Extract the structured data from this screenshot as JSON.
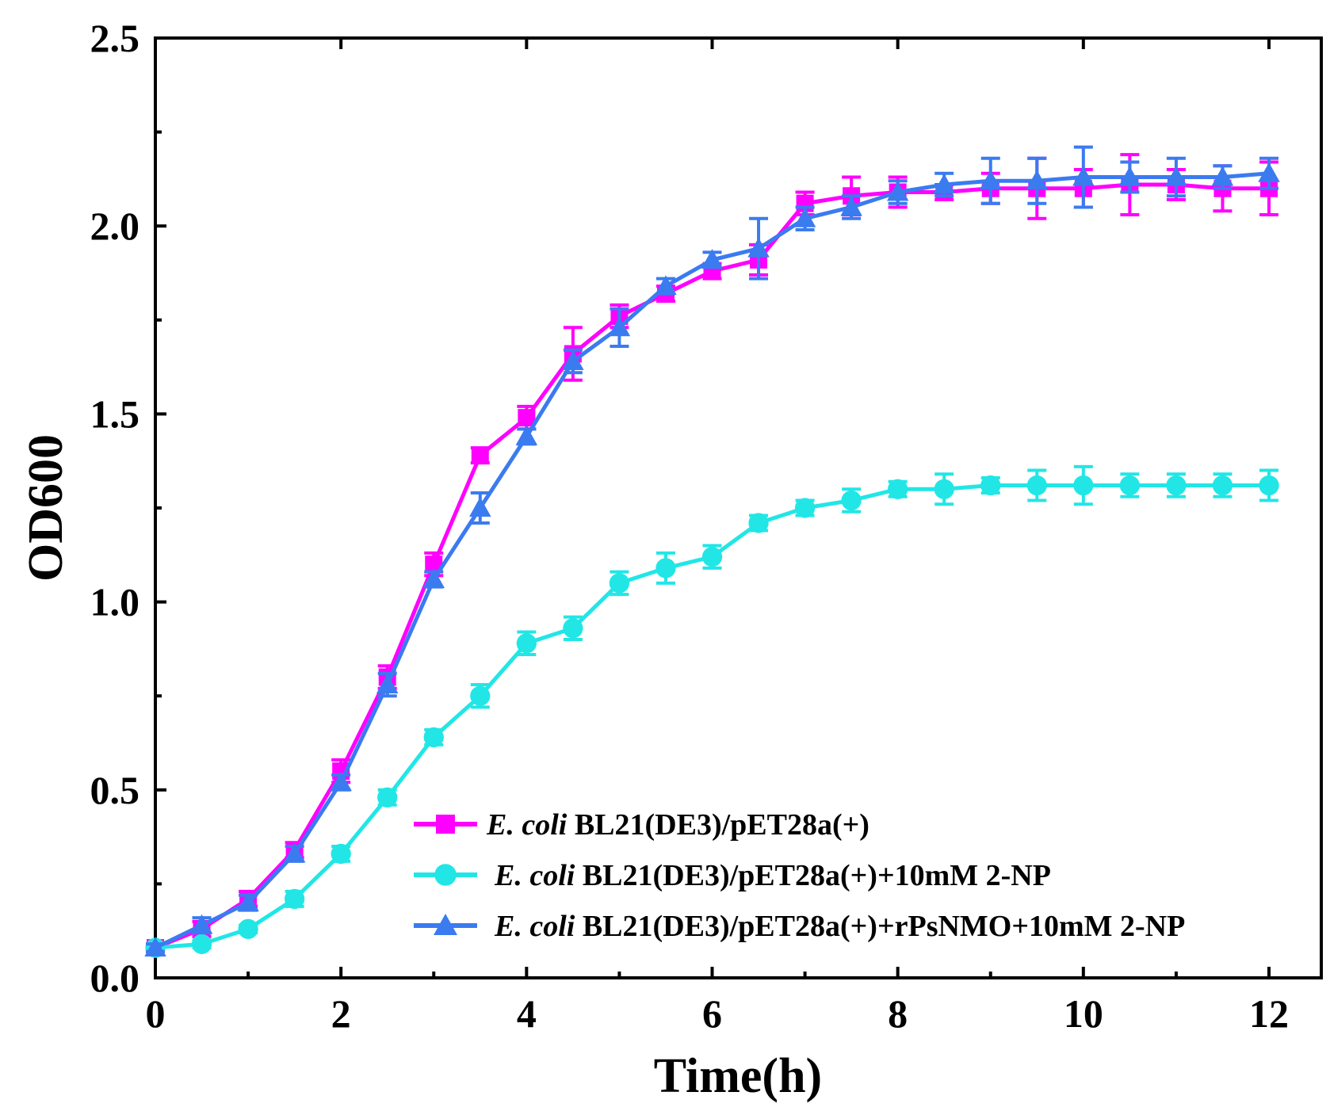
{
  "chart_data": {
    "type": "line",
    "xlabel": "Time(h)",
    "ylabel": "OD600",
    "xlim": [
      0,
      12
    ],
    "ylim": [
      0,
      2.5
    ],
    "x_ticks": [
      "0",
      "2",
      "4",
      "6",
      "8",
      "10",
      "12"
    ],
    "y_ticks": [
      "0.0",
      "0.5",
      "1.0",
      "1.5",
      "2.0",
      "2.5"
    ],
    "grid": false,
    "legend_position": "bottom-right",
    "x": [
      0,
      0.5,
      1,
      1.5,
      2,
      2.5,
      3,
      3.5,
      4,
      4.5,
      5,
      5.5,
      6,
      6.5,
      7,
      7.5,
      8,
      8.5,
      9,
      9.5,
      10,
      10.5,
      11,
      11.5,
      12
    ],
    "series": [
      {
        "legend_italic": "E. coli",
        "legend_rest": " BL21(DE3)/pET28a(+)",
        "marker": "square",
        "color": "#ff00ff",
        "values": [
          0.08,
          0.13,
          0.21,
          0.34,
          0.55,
          0.8,
          1.1,
          1.39,
          1.49,
          1.66,
          1.76,
          1.82,
          1.88,
          1.91,
          2.06,
          2.08,
          2.09,
          2.09,
          2.1,
          2.1,
          2.1,
          2.11,
          2.11,
          2.1,
          2.1
        ],
        "errors": [
          0.01,
          0.02,
          0.02,
          0.02,
          0.03,
          0.03,
          0.03,
          0.02,
          0.03,
          0.07,
          0.03,
          0.02,
          0.02,
          0.04,
          0.03,
          0.05,
          0.04,
          0.02,
          0.04,
          0.08,
          0.05,
          0.08,
          0.04,
          0.06,
          0.07
        ]
      },
      {
        "legend_italic": "E. coli",
        "legend_rest": " BL21(DE3)/pET28a(+)+10mM 2-NP",
        "marker": "circle",
        "color": "#22e6e6",
        "values": [
          0.08,
          0.09,
          0.13,
          0.21,
          0.33,
          0.48,
          0.64,
          0.75,
          0.89,
          0.93,
          1.05,
          1.09,
          1.12,
          1.21,
          1.25,
          1.27,
          1.3,
          1.3,
          1.31,
          1.31,
          1.31,
          1.31,
          1.31,
          1.31,
          1.31
        ],
        "errors": [
          0.01,
          0.01,
          0.01,
          0.02,
          0.02,
          0.02,
          0.02,
          0.03,
          0.03,
          0.03,
          0.03,
          0.04,
          0.03,
          0.02,
          0.02,
          0.03,
          0.02,
          0.04,
          0.02,
          0.04,
          0.05,
          0.03,
          0.03,
          0.03,
          0.04
        ]
      },
      {
        "legend_italic": "E. coli",
        "legend_rest": " BL21(DE3)/pET28a(+)+rPsNMO+10mM 2-NP",
        "marker": "triangle",
        "color": "#3b7bf0",
        "values": [
          0.08,
          0.14,
          0.2,
          0.33,
          0.52,
          0.78,
          1.06,
          1.25,
          1.44,
          1.64,
          1.73,
          1.84,
          1.91,
          1.94,
          2.02,
          2.05,
          2.09,
          2.11,
          2.12,
          2.12,
          2.13,
          2.13,
          2.13,
          2.13,
          2.14
        ],
        "errors": [
          0.01,
          0.02,
          0.02,
          0.02,
          0.02,
          0.03,
          0.02,
          0.04,
          0.02,
          0.03,
          0.05,
          0.02,
          0.02,
          0.08,
          0.03,
          0.03,
          0.03,
          0.03,
          0.06,
          0.06,
          0.08,
          0.04,
          0.05,
          0.03,
          0.04
        ]
      }
    ]
  }
}
